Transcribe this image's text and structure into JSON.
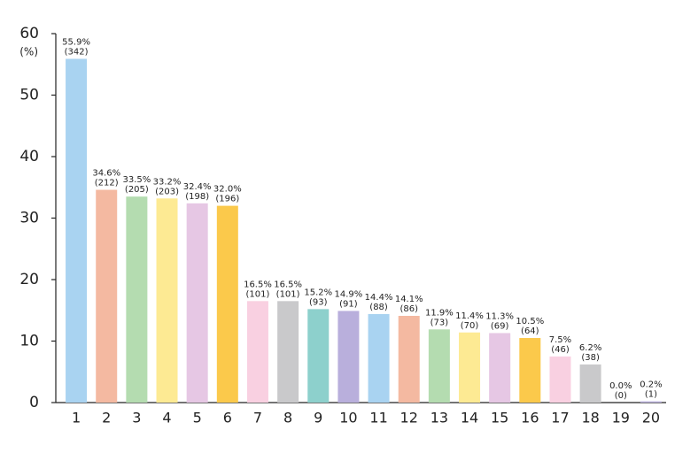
{
  "chart_data": {
    "type": "bar",
    "y_unit": "(%)",
    "categories": [
      "1",
      "2",
      "3",
      "4",
      "5",
      "6",
      "7",
      "8",
      "9",
      "10",
      "11",
      "12",
      "13",
      "14",
      "15",
      "16",
      "17",
      "18",
      "19",
      "20"
    ],
    "values": [
      55.9,
      34.6,
      33.5,
      33.2,
      32.4,
      32.0,
      16.5,
      16.5,
      15.2,
      14.9,
      14.4,
      14.1,
      11.9,
      11.4,
      11.3,
      10.5,
      7.5,
      6.2,
      0.0,
      0.2
    ],
    "value_labels": [
      "55.9%",
      "34.6%",
      "33.5%",
      "33.2%",
      "32.4%",
      "32.0%",
      "16.5%",
      "16.5%",
      "15.2%",
      "14.9%",
      "14.4%",
      "14.1%",
      "11.9%",
      "11.4%",
      "11.3%",
      "10.5%",
      "7.5%",
      "6.2%",
      "0.0%",
      "0.2%"
    ],
    "count_labels": [
      "(342)",
      "(212)",
      "(205)",
      "(203)",
      "(198)",
      "(196)",
      "(101)",
      "(101)",
      "(93)",
      "(91)",
      "(88)",
      "(86)",
      "(73)",
      "(70)",
      "(69)",
      "(64)",
      "(46)",
      "(38)",
      "(0)",
      "(1)"
    ],
    "colors": [
      "#a9d3f1",
      "#f4b9a1",
      "#b4dcb0",
      "#fdea93",
      "#e6c7e4",
      "#fbc94b",
      "#f9d0e1",
      "#c9c9cb",
      "#8dd0cc",
      "#b9afdc",
      "#a9d3f1",
      "#f4b9a1",
      "#b4dcb0",
      "#fdea93",
      "#e6c7e4",
      "#fbc94b",
      "#f9d0e1",
      "#c9c9cb",
      "#8dd0cc",
      "#b9afdc"
    ],
    "ylim": [
      0,
      60
    ],
    "yticks": [
      0,
      10,
      20,
      30,
      40,
      50,
      60
    ],
    "grid": false
  }
}
